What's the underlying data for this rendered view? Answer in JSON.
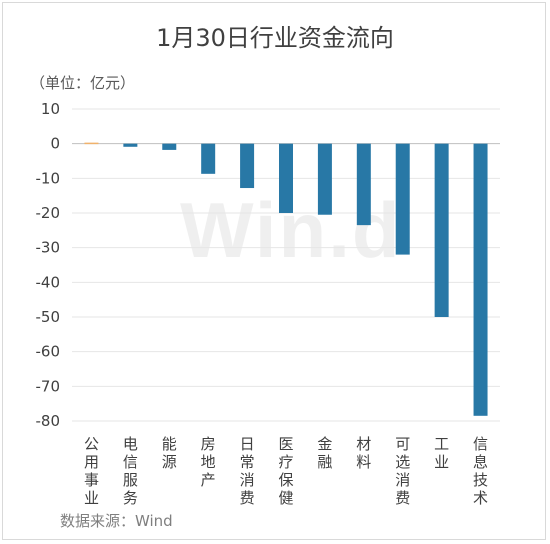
{
  "chart_data": {
    "type": "bar",
    "title": "1月30日行业资金流向",
    "unit_label": "（单位：亿元）",
    "source": "数据来源：Wind",
    "watermark": "Win.d",
    "categories": [
      "公用事业",
      "电信服务",
      "能源",
      "房地产",
      "日常消费",
      "医疗保健",
      "金融",
      "材料",
      "可选消费",
      "工业",
      "信息技术"
    ],
    "values": [
      0.3,
      -0.9,
      -1.8,
      -8.7,
      -12.8,
      -20.0,
      -20.5,
      -23.5,
      -32.0,
      -50.0,
      -78.5
    ],
    "yticks": [
      10,
      0,
      -10,
      -20,
      -30,
      -40,
      -50,
      -60,
      -70,
      -80
    ],
    "ylim": [
      -80,
      10
    ],
    "grid": true,
    "colors": {
      "negative": "#2878a6",
      "positive": "#f0b26b"
    }
  }
}
